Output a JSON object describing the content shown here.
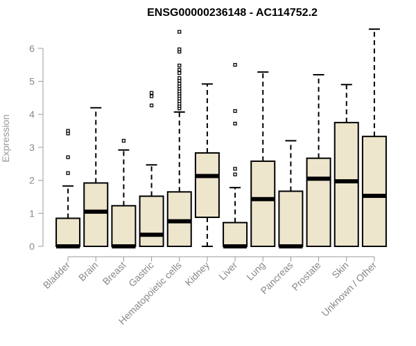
{
  "chart_data": {
    "type": "boxplot",
    "title": "ENSG00000236148 - AC114752.2",
    "xlabel": "",
    "ylabel": "Expression",
    "ylim": [
      0,
      6.5
    ],
    "yticks": [
      0,
      1,
      2,
      3,
      4,
      5,
      6
    ],
    "grid": false,
    "colors": {
      "box_fill": "#ede5cc",
      "box_stroke": "#000000",
      "axis": "#999999",
      "tick_text": "#888888"
    },
    "categories": [
      "Bladder",
      "Brain",
      "Breast",
      "Gastric",
      "Hematopoietic cells",
      "Kidney",
      "Liver",
      "Lung",
      "Pancreas",
      "Prostate",
      "Skin",
      "Unknown / Other"
    ],
    "boxes": [
      {
        "category": "Bladder",
        "whisker_low": 0,
        "q1": 0,
        "median": 0,
        "q3": 0.85,
        "whisker_high": 1.83,
        "outliers": [
          2.22,
          2.7,
          3.42,
          3.5
        ]
      },
      {
        "category": "Brain",
        "whisker_low": 0,
        "q1": 0,
        "median": 1.05,
        "q3": 1.92,
        "whisker_high": 4.2,
        "outliers": []
      },
      {
        "category": "Breast",
        "whisker_low": 0,
        "q1": 0,
        "median": 0,
        "q3": 1.23,
        "whisker_high": 2.92,
        "outliers": [
          3.2
        ]
      },
      {
        "category": "Gastric",
        "whisker_low": 0,
        "q1": 0,
        "median": 0.35,
        "q3": 1.52,
        "whisker_high": 2.47,
        "outliers": [
          4.27,
          4.55,
          4.65
        ]
      },
      {
        "category": "Hematopoietic cells",
        "whisker_low": 0,
        "q1": 0,
        "median": 0.76,
        "q3": 1.65,
        "whisker_high": 4.07,
        "outliers": [
          4.18,
          4.25,
          4.32,
          4.4,
          4.48,
          4.56,
          4.63,
          4.7,
          4.78,
          4.85,
          4.93,
          5.02,
          5.1,
          5.25,
          5.35,
          5.48,
          5.9,
          5.97,
          6.5
        ]
      },
      {
        "category": "Kidney",
        "whisker_low": 0,
        "q1": 0.88,
        "median": 2.13,
        "q3": 2.83,
        "whisker_high": 4.92,
        "outliers": []
      },
      {
        "category": "Liver",
        "whisker_low": 0,
        "q1": 0,
        "median": 0,
        "q3": 0.72,
        "whisker_high": 1.78,
        "outliers": [
          2.18,
          2.35,
          3.72,
          4.1,
          5.5
        ]
      },
      {
        "category": "Lung",
        "whisker_low": 0,
        "q1": 0,
        "median": 1.43,
        "q3": 2.58,
        "whisker_high": 5.28,
        "outliers": []
      },
      {
        "category": "Pancreas",
        "whisker_low": 0,
        "q1": 0,
        "median": 0,
        "q3": 1.67,
        "whisker_high": 3.2,
        "outliers": []
      },
      {
        "category": "Prostate",
        "whisker_low": 0,
        "q1": 0,
        "median": 2.05,
        "q3": 2.67,
        "whisker_high": 5.2,
        "outliers": []
      },
      {
        "category": "Skin",
        "whisker_low": 0,
        "q1": 0,
        "median": 1.97,
        "q3": 3.75,
        "whisker_high": 4.9,
        "outliers": []
      },
      {
        "category": "Unknown / Other",
        "whisker_low": 0,
        "q1": 0,
        "median": 1.53,
        "q3": 3.33,
        "whisker_high": 6.58,
        "outliers": []
      }
    ]
  }
}
